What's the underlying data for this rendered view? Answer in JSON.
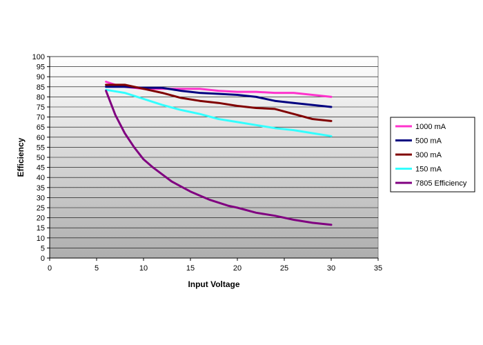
{
  "chart_data": {
    "type": "line",
    "title": "",
    "xlabel": "Input Voltage",
    "ylabel": "Efficiency",
    "xlim": [
      0,
      35
    ],
    "ylim": [
      0,
      100
    ],
    "xticks": [
      0,
      5,
      10,
      15,
      20,
      25,
      30,
      35
    ],
    "yticks": [
      0,
      5,
      10,
      15,
      20,
      25,
      30,
      35,
      40,
      45,
      50,
      55,
      60,
      65,
      70,
      75,
      80,
      85,
      90,
      95,
      100
    ],
    "grid": "horizontal",
    "legend_position": "right",
    "background": "gray-gradient",
    "series": [
      {
        "name": "1000 mA",
        "color": "#ff33cc",
        "points": [
          [
            6,
            87.5
          ],
          [
            7,
            86
          ],
          [
            8,
            85
          ],
          [
            9,
            84.5
          ],
          [
            10,
            84
          ],
          [
            12,
            84
          ],
          [
            14,
            84
          ],
          [
            16,
            84
          ],
          [
            18,
            83
          ],
          [
            20,
            82.5
          ],
          [
            22,
            82.5
          ],
          [
            24,
            82
          ],
          [
            26,
            82
          ],
          [
            28,
            81
          ],
          [
            30,
            80
          ]
        ]
      },
      {
        "name": "500 mA",
        "color": "#000080",
        "points": [
          [
            6,
            85
          ],
          [
            8,
            85
          ],
          [
            10,
            84.5
          ],
          [
            12,
            84.5
          ],
          [
            14,
            83
          ],
          [
            16,
            82
          ],
          [
            18,
            81.5
          ],
          [
            20,
            81
          ],
          [
            22,
            80
          ],
          [
            24,
            78
          ],
          [
            26,
            77
          ],
          [
            28,
            76
          ],
          [
            30,
            75
          ]
        ]
      },
      {
        "name": "300 mA",
        "color": "#800000",
        "points": [
          [
            6,
            86
          ],
          [
            8,
            86
          ],
          [
            10,
            84
          ],
          [
            12,
            82
          ],
          [
            14,
            79.5
          ],
          [
            16,
            78
          ],
          [
            18,
            77
          ],
          [
            20,
            75.5
          ],
          [
            22,
            74.5
          ],
          [
            24,
            74
          ],
          [
            26,
            71.5
          ],
          [
            28,
            69
          ],
          [
            30,
            68
          ]
        ]
      },
      {
        "name": "150 mA",
        "color": "#33ffff",
        "points": [
          [
            6,
            83.5
          ],
          [
            8,
            82
          ],
          [
            10,
            79
          ],
          [
            12,
            76
          ],
          [
            14,
            73.5
          ],
          [
            16,
            71.5
          ],
          [
            18,
            69
          ],
          [
            20,
            67.5
          ],
          [
            22,
            66
          ],
          [
            24,
            64.5
          ],
          [
            26,
            63.5
          ],
          [
            28,
            62
          ],
          [
            30,
            60.5
          ]
        ]
      },
      {
        "name": "7805 Efficiency",
        "color": "#800080",
        "points": [
          [
            6,
            83
          ],
          [
            7,
            71
          ],
          [
            8,
            62
          ],
          [
            9,
            55
          ],
          [
            10,
            49
          ],
          [
            11,
            45
          ],
          [
            12,
            41.5
          ],
          [
            13,
            38
          ],
          [
            14,
            35.5
          ],
          [
            15,
            33
          ],
          [
            16,
            31
          ],
          [
            17,
            29
          ],
          [
            18,
            27.5
          ],
          [
            19,
            26
          ],
          [
            20,
            25
          ],
          [
            22,
            22.5
          ],
          [
            24,
            21
          ],
          [
            26,
            19
          ],
          [
            28,
            17.5
          ],
          [
            30,
            16.5
          ]
        ]
      }
    ]
  }
}
